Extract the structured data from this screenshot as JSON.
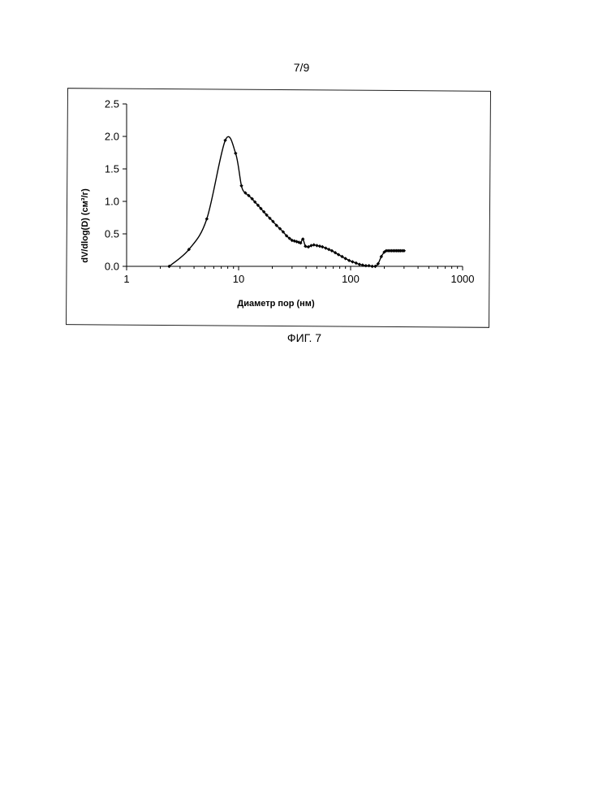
{
  "page": {
    "number": "7/9",
    "caption": "ФИГ. 7"
  },
  "chart_data": {
    "type": "line",
    "title": "",
    "xlabel": "Диаметр пор (нм)",
    "ylabel": "dV/dlog(D) (см³/г)",
    "xscale": "log",
    "xlim": [
      1,
      1000
    ],
    "ylim": [
      0,
      2.5
    ],
    "x_tick_labels": [
      "1",
      "10",
      "100",
      "1000"
    ],
    "y_tick_labels": [
      "0.0",
      "0.5",
      "1.0",
      "1.5",
      "2.0",
      "2.5"
    ],
    "grid": false,
    "legend": "none",
    "marker": "diamond",
    "line_color": "#000000",
    "series": [
      {
        "x": [
          2.4,
          3.6,
          5.2,
          7.6,
          9.4,
          10.6,
          11.5,
          12.3,
          13.2,
          14.0,
          14.9,
          15.8,
          16.8,
          17.8,
          19.0,
          20.3,
          21.8,
          23.4,
          25.0,
          26.8,
          28.5,
          30.0,
          31.5,
          33.0,
          34.5,
          35.8,
          37.5,
          39.5,
          42.0,
          44.5,
          47.0,
          50.0,
          53.0,
          56.0,
          60.0,
          64.0,
          68.0,
          73.0,
          78.0,
          84.0,
          90.0,
          97.0,
          104.0,
          112.0,
          120.0,
          128.0,
          137.0,
          146.0,
          156.0,
          166.0,
          176.0,
          188.0,
          200.0,
          208.0,
          216.0,
          224.0,
          232.0,
          240.0,
          248.0,
          256.0,
          264.0,
          272.0,
          280.0,
          290.0,
          300.0
        ],
        "y": [
          0.0,
          0.26,
          0.73,
          1.94,
          1.74,
          1.24,
          1.13,
          1.09,
          1.04,
          0.99,
          0.94,
          0.89,
          0.84,
          0.79,
          0.74,
          0.69,
          0.63,
          0.58,
          0.53,
          0.47,
          0.43,
          0.4,
          0.39,
          0.38,
          0.37,
          0.36,
          0.42,
          0.31,
          0.3,
          0.32,
          0.33,
          0.32,
          0.31,
          0.3,
          0.28,
          0.26,
          0.24,
          0.21,
          0.18,
          0.15,
          0.12,
          0.09,
          0.07,
          0.05,
          0.03,
          0.02,
          0.01,
          0.01,
          0.0,
          0.0,
          0.04,
          0.15,
          0.22,
          0.24,
          0.24,
          0.24,
          0.24,
          0.24,
          0.24,
          0.24,
          0.24,
          0.24,
          0.24,
          0.24,
          0.24
        ]
      }
    ]
  }
}
